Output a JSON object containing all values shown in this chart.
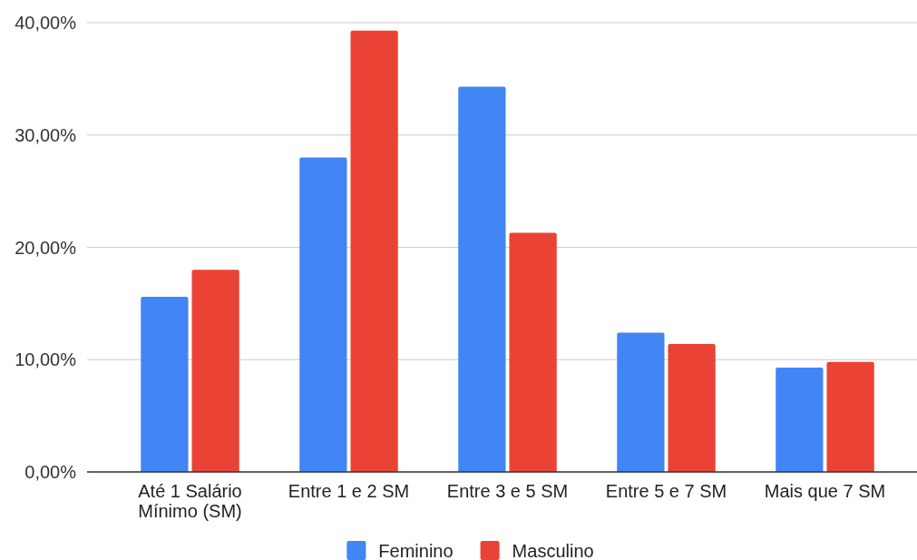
{
  "chart_data": {
    "type": "bar",
    "categories": [
      "Até 1 Salário Mínimo (SM)",
      "Entre 1 e 2 SM",
      "Entre 3 e 5 SM",
      "Entre 5 e 7 SM",
      "Mais que 7 SM"
    ],
    "series": [
      {
        "name": "Feminino",
        "color": "#4285f4",
        "values": [
          15.6,
          28.0,
          34.3,
          12.4,
          9.3
        ]
      },
      {
        "name": "Masculino",
        "color": "#ea4335",
        "values": [
          18.0,
          39.3,
          21.3,
          11.4,
          9.8
        ]
      }
    ],
    "ylim": [
      0,
      40
    ],
    "yticks": [
      {
        "value": 0,
        "label": "0,00%"
      },
      {
        "value": 10,
        "label": "10,00%"
      },
      {
        "value": 20,
        "label": "20,00%"
      },
      {
        "value": 30,
        "label": "30,00%"
      },
      {
        "value": 40,
        "label": "40,00%"
      }
    ],
    "grid": true,
    "legend": "bottom"
  }
}
